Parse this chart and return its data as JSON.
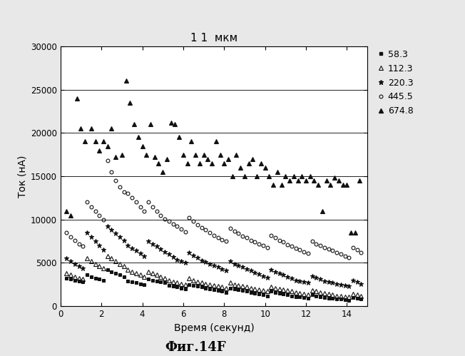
{
  "title": "1 1  мкм",
  "xlabel": "Время (секунд)",
  "ylabel": "Ток (нА)",
  "xlim": [
    0,
    15
  ],
  "ylim": [
    0,
    30000
  ],
  "yticks": [
    0,
    5000,
    10000,
    15000,
    20000,
    25000,
    30000
  ],
  "xticks": [
    0,
    2,
    4,
    6,
    8,
    10,
    12,
    14
  ],
  "caption": "Фиг.14F",
  "bg_color": "#e8e8e8",
  "series": [
    {
      "label": "58.3",
      "marker": "s",
      "filled": true,
      "ms": 3,
      "color": "#111111",
      "data": [
        [
          0.3,
          3200
        ],
        [
          0.5,
          3100
        ],
        [
          0.7,
          3000
        ],
        [
          0.9,
          2900
        ],
        [
          1.1,
          2800
        ],
        [
          1.3,
          3600
        ],
        [
          1.5,
          3400
        ],
        [
          1.7,
          3200
        ],
        [
          1.9,
          3100
        ],
        [
          2.1,
          3000
        ],
        [
          2.3,
          4200
        ],
        [
          2.5,
          4000
        ],
        [
          2.7,
          3800
        ],
        [
          2.9,
          3600
        ],
        [
          3.1,
          3400
        ],
        [
          3.3,
          2900
        ],
        [
          3.5,
          2800
        ],
        [
          3.7,
          2700
        ],
        [
          3.9,
          2600
        ],
        [
          4.1,
          2500
        ],
        [
          4.3,
          3100
        ],
        [
          4.5,
          3000
        ],
        [
          4.7,
          2900
        ],
        [
          4.9,
          2800
        ],
        [
          5.1,
          2700
        ],
        [
          5.3,
          2400
        ],
        [
          5.5,
          2300
        ],
        [
          5.7,
          2200
        ],
        [
          5.9,
          2100
        ],
        [
          6.1,
          2000
        ],
        [
          6.3,
          2500
        ],
        [
          6.5,
          2400
        ],
        [
          6.7,
          2300
        ],
        [
          6.9,
          2200
        ],
        [
          7.1,
          2100
        ],
        [
          7.3,
          2000
        ],
        [
          7.5,
          1900
        ],
        [
          7.7,
          1800
        ],
        [
          7.9,
          1700
        ],
        [
          8.1,
          1600
        ],
        [
          8.3,
          2100
        ],
        [
          8.5,
          2000
        ],
        [
          8.7,
          1900
        ],
        [
          8.9,
          1800
        ],
        [
          9.1,
          1700
        ],
        [
          9.3,
          1600
        ],
        [
          9.5,
          1500
        ],
        [
          9.7,
          1400
        ],
        [
          9.9,
          1300
        ],
        [
          10.1,
          1200
        ],
        [
          10.3,
          1700
        ],
        [
          10.5,
          1600
        ],
        [
          10.7,
          1500
        ],
        [
          10.9,
          1400
        ],
        [
          11.1,
          1300
        ],
        [
          11.3,
          1200
        ],
        [
          11.5,
          1100
        ],
        [
          11.7,
          1050
        ],
        [
          11.9,
          1000
        ],
        [
          12.1,
          950
        ],
        [
          12.3,
          1300
        ],
        [
          12.5,
          1200
        ],
        [
          12.7,
          1100
        ],
        [
          12.9,
          1000
        ],
        [
          13.1,
          950
        ],
        [
          13.3,
          900
        ],
        [
          13.5,
          850
        ],
        [
          13.7,
          800
        ],
        [
          13.9,
          750
        ],
        [
          14.1,
          700
        ],
        [
          14.3,
          1000
        ],
        [
          14.5,
          900
        ],
        [
          14.7,
          800
        ]
      ]
    },
    {
      "label": "112.3",
      "marker": "^",
      "filled": false,
      "ms": 4,
      "color": "#111111",
      "data": [
        [
          0.3,
          3800
        ],
        [
          0.5,
          3600
        ],
        [
          0.7,
          3400
        ],
        [
          0.9,
          3200
        ],
        [
          1.1,
          3100
        ],
        [
          1.3,
          5500
        ],
        [
          1.5,
          5200
        ],
        [
          1.7,
          4900
        ],
        [
          1.9,
          4600
        ],
        [
          2.1,
          4400
        ],
        [
          2.3,
          5800
        ],
        [
          2.5,
          5500
        ],
        [
          2.7,
          5200
        ],
        [
          2.9,
          4900
        ],
        [
          3.1,
          4600
        ],
        [
          3.3,
          4200
        ],
        [
          3.5,
          4000
        ],
        [
          3.7,
          3800
        ],
        [
          3.9,
          3600
        ],
        [
          4.1,
          3400
        ],
        [
          4.3,
          4000
        ],
        [
          4.5,
          3800
        ],
        [
          4.7,
          3600
        ],
        [
          4.9,
          3400
        ],
        [
          5.1,
          3200
        ],
        [
          5.3,
          3000
        ],
        [
          5.5,
          2800
        ],
        [
          5.7,
          2700
        ],
        [
          5.9,
          2600
        ],
        [
          6.1,
          2500
        ],
        [
          6.3,
          3200
        ],
        [
          6.5,
          3000
        ],
        [
          6.7,
          2800
        ],
        [
          6.9,
          2700
        ],
        [
          7.1,
          2600
        ],
        [
          7.3,
          2500
        ],
        [
          7.5,
          2400
        ],
        [
          7.7,
          2300
        ],
        [
          7.9,
          2200
        ],
        [
          8.1,
          2100
        ],
        [
          8.3,
          2700
        ],
        [
          8.5,
          2500
        ],
        [
          8.7,
          2400
        ],
        [
          8.9,
          2300
        ],
        [
          9.1,
          2200
        ],
        [
          9.3,
          2100
        ],
        [
          9.5,
          2000
        ],
        [
          9.7,
          1900
        ],
        [
          9.9,
          1800
        ],
        [
          10.1,
          1700
        ],
        [
          10.3,
          2200
        ],
        [
          10.5,
          2100
        ],
        [
          10.7,
          2000
        ],
        [
          10.9,
          1900
        ],
        [
          11.1,
          1800
        ],
        [
          11.3,
          1700
        ],
        [
          11.5,
          1600
        ],
        [
          11.7,
          1500
        ],
        [
          11.9,
          1400
        ],
        [
          12.1,
          1300
        ],
        [
          12.3,
          1800
        ],
        [
          12.5,
          1700
        ],
        [
          12.7,
          1600
        ],
        [
          12.9,
          1500
        ],
        [
          13.1,
          1400
        ],
        [
          13.3,
          1300
        ],
        [
          13.5,
          1200
        ],
        [
          13.7,
          1150
        ],
        [
          13.9,
          1100
        ],
        [
          14.1,
          1050
        ],
        [
          14.3,
          1400
        ],
        [
          14.5,
          1300
        ],
        [
          14.7,
          1200
        ]
      ]
    },
    {
      "label": "220.3",
      "marker": "*",
      "filled": true,
      "ms": 5,
      "color": "#111111",
      "data": [
        [
          0.3,
          5500
        ],
        [
          0.5,
          5200
        ],
        [
          0.7,
          4900
        ],
        [
          0.9,
          4600
        ],
        [
          1.1,
          4400
        ],
        [
          1.3,
          8500
        ],
        [
          1.5,
          8000
        ],
        [
          1.7,
          7500
        ],
        [
          1.9,
          7000
        ],
        [
          2.1,
          6500
        ],
        [
          2.3,
          9200
        ],
        [
          2.5,
          8800
        ],
        [
          2.7,
          8400
        ],
        [
          2.9,
          8000
        ],
        [
          3.1,
          7600
        ],
        [
          3.3,
          7000
        ],
        [
          3.5,
          6700
        ],
        [
          3.7,
          6400
        ],
        [
          3.9,
          6100
        ],
        [
          4.1,
          5800
        ],
        [
          4.3,
          7500
        ],
        [
          4.5,
          7200
        ],
        [
          4.7,
          6900
        ],
        [
          4.9,
          6600
        ],
        [
          5.1,
          6300
        ],
        [
          5.3,
          6000
        ],
        [
          5.5,
          5700
        ],
        [
          5.7,
          5400
        ],
        [
          5.9,
          5200
        ],
        [
          6.1,
          5000
        ],
        [
          6.3,
          6200
        ],
        [
          6.5,
          5900
        ],
        [
          6.7,
          5600
        ],
        [
          6.9,
          5300
        ],
        [
          7.1,
          5100
        ],
        [
          7.3,
          4900
        ],
        [
          7.5,
          4700
        ],
        [
          7.7,
          4500
        ],
        [
          7.9,
          4300
        ],
        [
          8.1,
          4100
        ],
        [
          8.3,
          5200
        ],
        [
          8.5,
          4900
        ],
        [
          8.7,
          4700
        ],
        [
          8.9,
          4500
        ],
        [
          9.1,
          4300
        ],
        [
          9.3,
          4100
        ],
        [
          9.5,
          3900
        ],
        [
          9.7,
          3700
        ],
        [
          9.9,
          3500
        ],
        [
          10.1,
          3300
        ],
        [
          10.3,
          4200
        ],
        [
          10.5,
          4000
        ],
        [
          10.7,
          3800
        ],
        [
          10.9,
          3600
        ],
        [
          11.1,
          3400
        ],
        [
          11.3,
          3200
        ],
        [
          11.5,
          3000
        ],
        [
          11.7,
          2900
        ],
        [
          11.9,
          2800
        ],
        [
          12.1,
          2700
        ],
        [
          12.3,
          3500
        ],
        [
          12.5,
          3300
        ],
        [
          12.7,
          3100
        ],
        [
          12.9,
          2900
        ],
        [
          13.1,
          2800
        ],
        [
          13.3,
          2700
        ],
        [
          13.5,
          2600
        ],
        [
          13.7,
          2500
        ],
        [
          13.9,
          2400
        ],
        [
          14.1,
          2300
        ],
        [
          14.3,
          3000
        ],
        [
          14.5,
          2800
        ],
        [
          14.7,
          2600
        ]
      ]
    },
    {
      "label": "445.5",
      "marker": "o",
      "filled": false,
      "ms": 4,
      "color": "#111111",
      "data": [
        [
          0.3,
          8500
        ],
        [
          0.5,
          8000
        ],
        [
          0.7,
          7600
        ],
        [
          0.9,
          7200
        ],
        [
          1.1,
          6900
        ],
        [
          1.3,
          12000
        ],
        [
          1.5,
          11500
        ],
        [
          1.7,
          11000
        ],
        [
          1.9,
          10500
        ],
        [
          2.1,
          10000
        ],
        [
          2.3,
          16800
        ],
        [
          2.5,
          15500
        ],
        [
          2.7,
          14500
        ],
        [
          2.9,
          13800
        ],
        [
          3.1,
          13200
        ],
        [
          3.3,
          13000
        ],
        [
          3.5,
          12500
        ],
        [
          3.7,
          12000
        ],
        [
          3.9,
          11500
        ],
        [
          4.1,
          11000
        ],
        [
          4.3,
          12000
        ],
        [
          4.5,
          11500
        ],
        [
          4.7,
          11000
        ],
        [
          4.9,
          10500
        ],
        [
          5.1,
          10100
        ],
        [
          5.3,
          9800
        ],
        [
          5.5,
          9500
        ],
        [
          5.7,
          9200
        ],
        [
          5.9,
          8900
        ],
        [
          6.1,
          8600
        ],
        [
          6.3,
          10200
        ],
        [
          6.5,
          9800
        ],
        [
          6.7,
          9400
        ],
        [
          6.9,
          9100
        ],
        [
          7.1,
          8800
        ],
        [
          7.3,
          8500
        ],
        [
          7.5,
          8200
        ],
        [
          7.7,
          7900
        ],
        [
          7.9,
          7700
        ],
        [
          8.1,
          7500
        ],
        [
          8.3,
          9000
        ],
        [
          8.5,
          8700
        ],
        [
          8.7,
          8400
        ],
        [
          8.9,
          8100
        ],
        [
          9.1,
          7900
        ],
        [
          9.3,
          7600
        ],
        [
          9.5,
          7400
        ],
        [
          9.7,
          7200
        ],
        [
          9.9,
          7000
        ],
        [
          10.1,
          6800
        ],
        [
          10.3,
          8200
        ],
        [
          10.5,
          7900
        ],
        [
          10.7,
          7600
        ],
        [
          10.9,
          7400
        ],
        [
          11.1,
          7100
        ],
        [
          11.3,
          6900
        ],
        [
          11.5,
          6700
        ],
        [
          11.7,
          6500
        ],
        [
          11.9,
          6300
        ],
        [
          12.1,
          6100
        ],
        [
          12.3,
          7500
        ],
        [
          12.5,
          7200
        ],
        [
          12.7,
          7000
        ],
        [
          12.9,
          6800
        ],
        [
          13.1,
          6600
        ],
        [
          13.3,
          6400
        ],
        [
          13.5,
          6200
        ],
        [
          13.7,
          6000
        ],
        [
          13.9,
          5800
        ],
        [
          14.1,
          5600
        ],
        [
          14.3,
          6800
        ],
        [
          14.5,
          6500
        ],
        [
          14.7,
          6200
        ]
      ]
    },
    {
      "label": "674.8",
      "marker": "^",
      "filled": true,
      "ms": 5,
      "color": "#111111",
      "data": [
        [
          0.3,
          11000
        ],
        [
          0.5,
          10500
        ],
        [
          0.8,
          24000
        ],
        [
          1.0,
          20500
        ],
        [
          1.2,
          19000
        ],
        [
          1.5,
          20500
        ],
        [
          1.7,
          19000
        ],
        [
          1.9,
          18000
        ],
        [
          2.1,
          19000
        ],
        [
          2.3,
          18500
        ],
        [
          2.5,
          20500
        ],
        [
          2.7,
          17200
        ],
        [
          3.0,
          17500
        ],
        [
          3.2,
          26000
        ],
        [
          3.4,
          23500
        ],
        [
          3.6,
          21000
        ],
        [
          3.8,
          19500
        ],
        [
          4.0,
          18500
        ],
        [
          4.2,
          17500
        ],
        [
          4.4,
          21000
        ],
        [
          4.6,
          17200
        ],
        [
          4.8,
          16500
        ],
        [
          5.0,
          15500
        ],
        [
          5.2,
          17000
        ],
        [
          5.4,
          21200
        ],
        [
          5.6,
          21000
        ],
        [
          5.8,
          19500
        ],
        [
          6.0,
          17500
        ],
        [
          6.2,
          16500
        ],
        [
          6.4,
          19000
        ],
        [
          6.6,
          17500
        ],
        [
          6.8,
          16500
        ],
        [
          7.0,
          17500
        ],
        [
          7.2,
          17000
        ],
        [
          7.4,
          16500
        ],
        [
          7.6,
          19000
        ],
        [
          7.8,
          17500
        ],
        [
          8.0,
          16500
        ],
        [
          8.2,
          17000
        ],
        [
          8.4,
          15000
        ],
        [
          8.6,
          17500
        ],
        [
          8.8,
          16000
        ],
        [
          9.0,
          15000
        ],
        [
          9.2,
          16500
        ],
        [
          9.4,
          17000
        ],
        [
          9.6,
          15000
        ],
        [
          9.8,
          16500
        ],
        [
          10.0,
          16000
        ],
        [
          10.2,
          15000
        ],
        [
          10.4,
          14000
        ],
        [
          10.6,
          15500
        ],
        [
          10.8,
          14000
        ],
        [
          11.0,
          15000
        ],
        [
          11.2,
          14500
        ],
        [
          11.4,
          15000
        ],
        [
          11.6,
          14500
        ],
        [
          11.8,
          15000
        ],
        [
          12.0,
          14500
        ],
        [
          12.2,
          15000
        ],
        [
          12.4,
          14500
        ],
        [
          12.6,
          14000
        ],
        [
          12.8,
          11000
        ],
        [
          13.0,
          14500
        ],
        [
          13.2,
          14000
        ],
        [
          13.4,
          14800
        ],
        [
          13.6,
          14500
        ],
        [
          13.8,
          14000
        ],
        [
          14.0,
          14000
        ],
        [
          14.2,
          8500
        ],
        [
          14.4,
          8500
        ],
        [
          14.6,
          14500
        ]
      ]
    }
  ]
}
